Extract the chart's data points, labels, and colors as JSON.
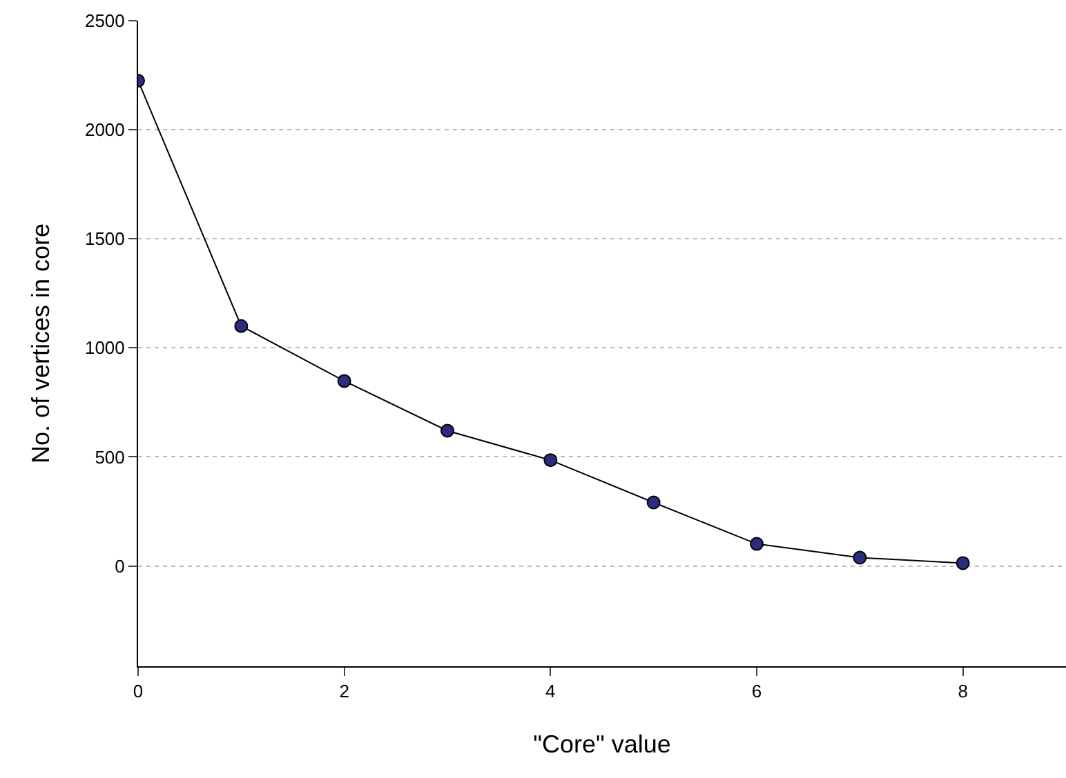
{
  "chart_data": {
    "type": "line",
    "xlabel": "\"Core\" value",
    "ylabel": "No. of vertices in core",
    "x": [
      0,
      1,
      2,
      3,
      4,
      5,
      6,
      7,
      8
    ],
    "series": [
      {
        "color": "#2b2b7f",
        "values": [
          2225,
          1100,
          848,
          620,
          485,
          291,
          101,
          38,
          13
        ]
      }
    ],
    "xlim": [
      0,
      9
    ],
    "xticks": [
      0,
      2,
      4,
      6,
      8
    ],
    "ylim": [
      -460,
      2500
    ],
    "yticks": [
      0,
      500,
      1000,
      1500,
      2000,
      2500
    ],
    "grid": "y",
    "marker": "circle",
    "line_style": "solid",
    "legend": false
  }
}
